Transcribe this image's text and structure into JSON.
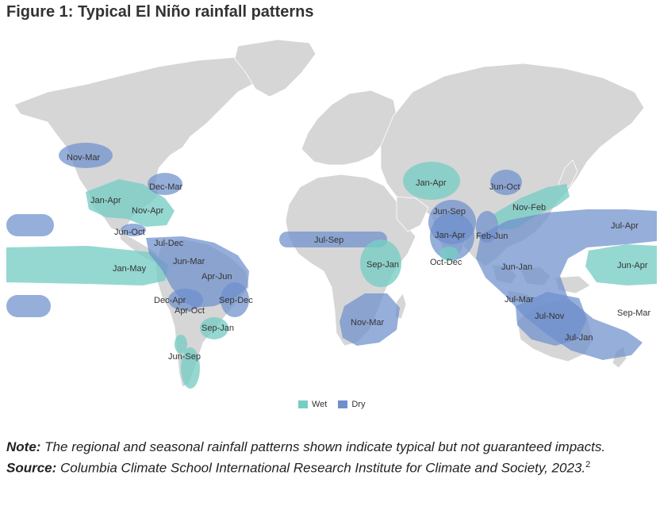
{
  "title": "Figure 1: Typical El Niño rainfall patterns",
  "colors": {
    "wet": "#77cdc4",
    "dry": "#6e8fcc",
    "land": "#d6d6d6"
  },
  "regions": [
    {
      "id": "nov-mar-alaska",
      "label": "Nov-Mar",
      "type": "dry"
    },
    {
      "id": "dec-mar",
      "label": "Dec-Mar",
      "type": "dry"
    },
    {
      "id": "jan-apr-usa",
      "label": "Jan-Apr",
      "type": "wet"
    },
    {
      "id": "nov-apr",
      "label": "Nov-Apr",
      "type": "wet"
    },
    {
      "id": "jun-oct-central-america",
      "label": "Jun-Oct",
      "type": "dry"
    },
    {
      "id": "jul-dec",
      "label": "Jul-Dec",
      "type": "dry"
    },
    {
      "id": "jan-may",
      "label": "Jan-May",
      "type": "wet"
    },
    {
      "id": "jun-mar",
      "label": "Jun-Mar",
      "type": "dry"
    },
    {
      "id": "apr-jun",
      "label": "Apr-Jun",
      "type": "dry"
    },
    {
      "id": "dec-apr",
      "label": "Dec-Apr",
      "type": "dry"
    },
    {
      "id": "apr-oct",
      "label": "Apr-Oct",
      "type": "dry"
    },
    {
      "id": "sep-dec",
      "label": "Sep-Dec",
      "type": "dry"
    },
    {
      "id": "sep-jan-sa",
      "label": "Sep-Jan",
      "type": "wet"
    },
    {
      "id": "jun-sep-chile",
      "label": "Jun-Sep",
      "type": "wet"
    },
    {
      "id": "jul-sep",
      "label": "Jul-Sep",
      "type": "dry"
    },
    {
      "id": "sep-jan-africa",
      "label": "Sep-Jan",
      "type": "wet"
    },
    {
      "id": "nov-mar-africa",
      "label": "Nov-Mar",
      "type": "dry"
    },
    {
      "id": "jan-apr-central-asia",
      "label": "Jan-Apr",
      "type": "wet"
    },
    {
      "id": "jun-sep-india",
      "label": "Jun-Sep",
      "type": "dry"
    },
    {
      "id": "jan-apr-india",
      "label": "Jan-Apr",
      "type": "dry"
    },
    {
      "id": "oct-dec",
      "label": "Oct-Dec",
      "type": "wet"
    },
    {
      "id": "jun-oct-china",
      "label": "Jun-Oct",
      "type": "dry"
    },
    {
      "id": "nov-feb",
      "label": "Nov-Feb",
      "type": "wet"
    },
    {
      "id": "feb-jun",
      "label": "Feb-Jun",
      "type": "dry"
    },
    {
      "id": "jul-apr",
      "label": "Jul-Apr",
      "type": "dry"
    },
    {
      "id": "jun-apr",
      "label": "Jun-Apr",
      "type": "wet"
    },
    {
      "id": "jun-jan",
      "label": "Jun-Jan",
      "type": "dry"
    },
    {
      "id": "jul-mar",
      "label": "Jul-Mar",
      "type": "dry"
    },
    {
      "id": "jul-nov",
      "label": "Jul-Nov",
      "type": "dry"
    },
    {
      "id": "sep-mar",
      "label": "Sep-Mar",
      "type": "dry"
    },
    {
      "id": "jul-jan",
      "label": "Jul-Jan",
      "type": "dry"
    }
  ],
  "legend": {
    "wet_label": "Wet",
    "dry_label": "Dry"
  },
  "note": {
    "label": "Note:",
    "text": " The regional and seasonal rainfall patterns shown indicate typical but not guaranteed impacts."
  },
  "source": {
    "label": "Source:",
    "text": " Columbia Climate School International Research Institute for Climate and Society, 2023.",
    "footnote": "2"
  }
}
